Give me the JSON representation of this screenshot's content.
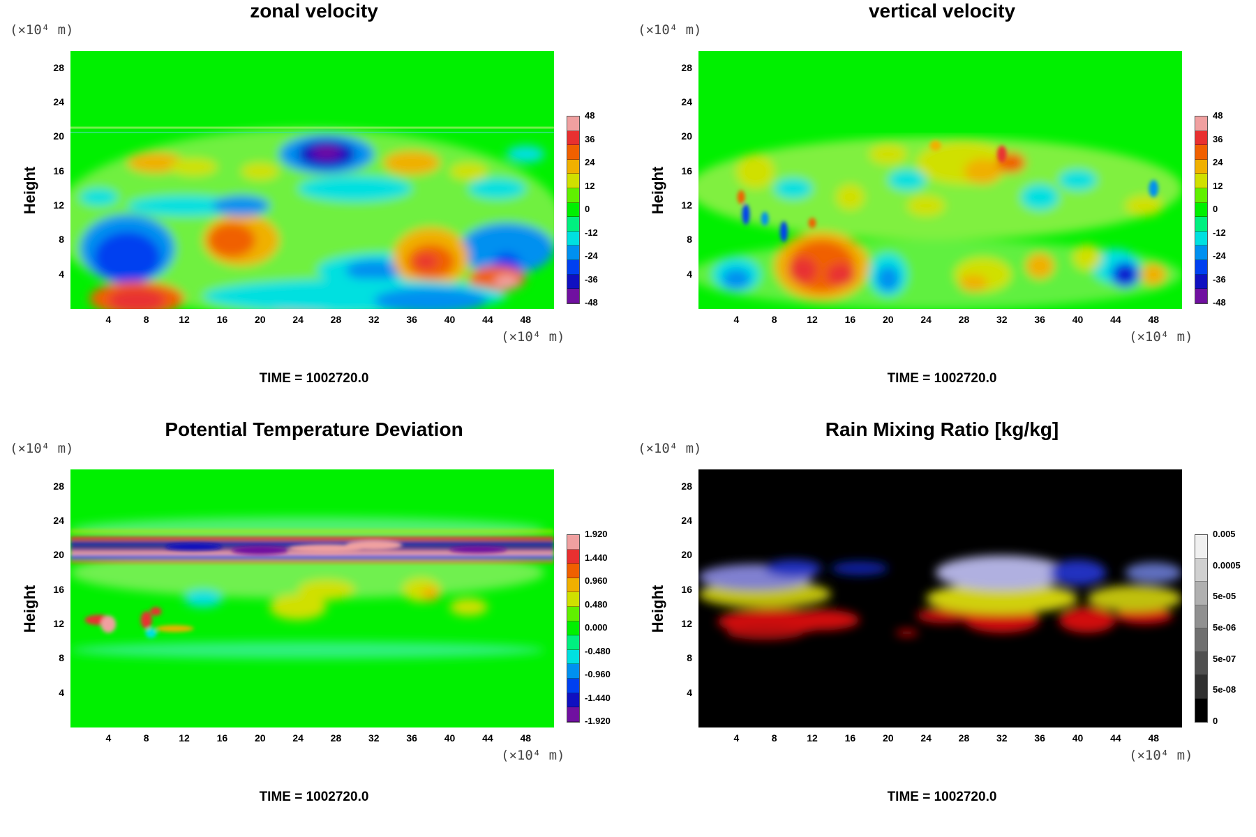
{
  "common": {
    "scale_y": "(×10⁴ m)",
    "scale_x": "(×10⁴ m)",
    "ylabel": "Height",
    "time": "TIME = 1002720.0"
  },
  "panels": [
    {
      "title": "zonal velocity",
      "kind": "jet",
      "colorbar_labels": [
        "48",
        "36",
        "24",
        "12",
        "0",
        "-12",
        "-24",
        "-36",
        "-48"
      ]
    },
    {
      "title": "vertical velocity",
      "kind": "jet",
      "colorbar_labels": [
        "48",
        "36",
        "24",
        "12",
        "0",
        "-12",
        "-24",
        "-36",
        "-48"
      ]
    },
    {
      "title": "Potential Temperature Deviation",
      "kind": "jet",
      "colorbar_labels": [
        "1.920",
        "1.440",
        "0.960",
        "0.480",
        "0.000",
        "-0.480",
        "-0.960",
        "-1.440",
        "-1.920"
      ]
    },
    {
      "title": "Rain Mixing Ratio [kg/kg]",
      "kind": "gray",
      "colorbar_labels": [
        "0.005",
        "0.0005",
        "5e-05",
        "5e-06",
        "5e-07",
        "5e-08",
        "0"
      ]
    }
  ],
  "chart_data": [
    {
      "type": "heatmap",
      "title": "zonal velocity",
      "ylabel": "Height",
      "xunit": "(×10⁴ m)",
      "yunit": "(×10⁴ m)",
      "x_ticks": [
        4,
        8,
        12,
        16,
        20,
        24,
        28,
        32,
        36,
        40,
        44,
        48
      ],
      "y_ticks": [
        4,
        8,
        12,
        16,
        20,
        24,
        28
      ],
      "xlim": [
        0,
        51
      ],
      "ylim": [
        0,
        30
      ],
      "zlim": [
        -48,
        48
      ]
    },
    {
      "type": "heatmap",
      "title": "vertical velocity",
      "ylabel": "Height",
      "xunit": "(×10⁴ m)",
      "yunit": "(×10⁴ m)",
      "x_ticks": [
        4,
        8,
        12,
        16,
        20,
        24,
        28,
        32,
        36,
        40,
        44,
        48
      ],
      "y_ticks": [
        4,
        8,
        12,
        16,
        20,
        24,
        28
      ],
      "xlim": [
        0,
        51
      ],
      "ylim": [
        0,
        30
      ],
      "zlim": [
        -48,
        48
      ]
    },
    {
      "type": "heatmap",
      "title": "Potential Temperature Deviation",
      "ylabel": "Height",
      "xunit": "(×10⁴ m)",
      "yunit": "(×10⁴ m)",
      "x_ticks": [
        4,
        8,
        12,
        16,
        20,
        24,
        28,
        32,
        36,
        40,
        44,
        48
      ],
      "y_ticks": [
        4,
        8,
        12,
        16,
        20,
        24,
        28
      ],
      "xlim": [
        0,
        51
      ],
      "ylim": [
        0,
        30
      ],
      "zlim": [
        -1.92,
        1.92
      ]
    },
    {
      "type": "heatmap",
      "title": "Rain Mixing Ratio [kg/kg]",
      "ylabel": "Height",
      "xunit": "(×10⁴ m)",
      "yunit": "(×10⁴ m)",
      "x_ticks": [
        4,
        8,
        12,
        16,
        20,
        24,
        28,
        32,
        36,
        40,
        44,
        48
      ],
      "y_ticks": [
        4,
        8,
        12,
        16,
        20,
        24,
        28
      ],
      "xlim": [
        0,
        51
      ],
      "ylim": [
        0,
        30
      ]
    }
  ],
  "colors": {
    "jet": [
      "#f0a0a0",
      "#e83030",
      "#f06000",
      "#f0b000",
      "#d0e000",
      "#60f000",
      "#00f000",
      "#00f080",
      "#00e0e0",
      "#0090f0",
      "#0040f0",
      "#1010c0",
      "#7010a0"
    ],
    "gray": [
      "#f0f0f0",
      "#d0d0d0",
      "#b0b0b0",
      "#909090",
      "#707070",
      "#505050",
      "#303030",
      "#000000"
    ]
  }
}
